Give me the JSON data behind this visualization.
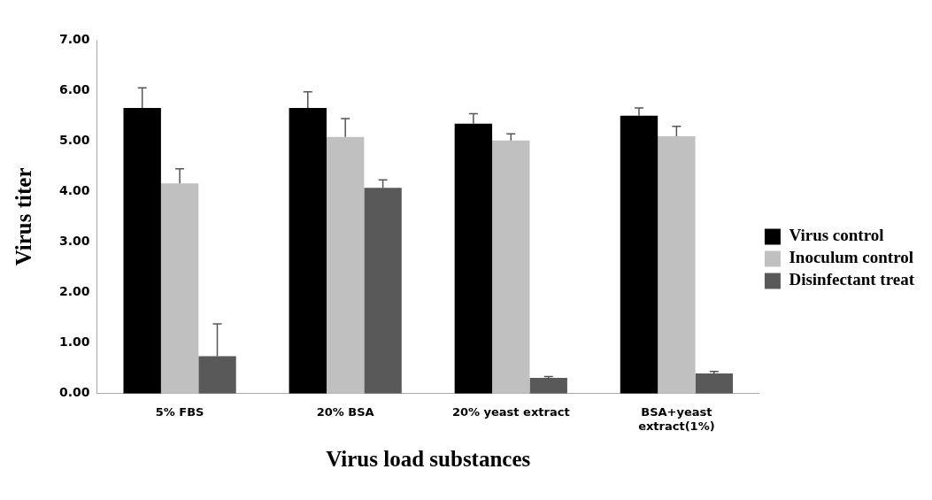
{
  "chart_data": {
    "type": "bar",
    "xlabel": "Virus load substances",
    "ylabel": "Virus titer",
    "categories": [
      "5% FBS",
      "20% BSA",
      "20% yeast extract",
      "BSA+yeast extract(1%)"
    ],
    "series": [
      {
        "name": "Virus control",
        "color": "#000000",
        "values": [
          5.65,
          5.65,
          5.34,
          5.5
        ],
        "errors": [
          0.4,
          0.32,
          0.2,
          0.15
        ]
      },
      {
        "name": "Inoculum control",
        "color": "#c0c0c0",
        "values": [
          4.16,
          5.08,
          5.01,
          5.09
        ],
        "errors": [
          0.29,
          0.36,
          0.13,
          0.2
        ]
      },
      {
        "name": "Disinfectant treat",
        "color": "#595959",
        "values": [
          0.74,
          4.07,
          0.31,
          0.4
        ],
        "errors": [
          0.64,
          0.16,
          0.03,
          0.04
        ]
      }
    ],
    "ylim": [
      0,
      7
    ],
    "yticks": [
      {
        "value": 0,
        "label": "0.00"
      },
      {
        "value": 1,
        "label": "1.00"
      },
      {
        "value": 2,
        "label": "2.00"
      },
      {
        "value": 3,
        "label": "3.00"
      },
      {
        "value": 4,
        "label": "4.00"
      },
      {
        "value": 5,
        "label": "5.00"
      },
      {
        "value": 6,
        "label": "6.00"
      },
      {
        "value": 7,
        "label": "7.00"
      }
    ],
    "legend": "right"
  }
}
